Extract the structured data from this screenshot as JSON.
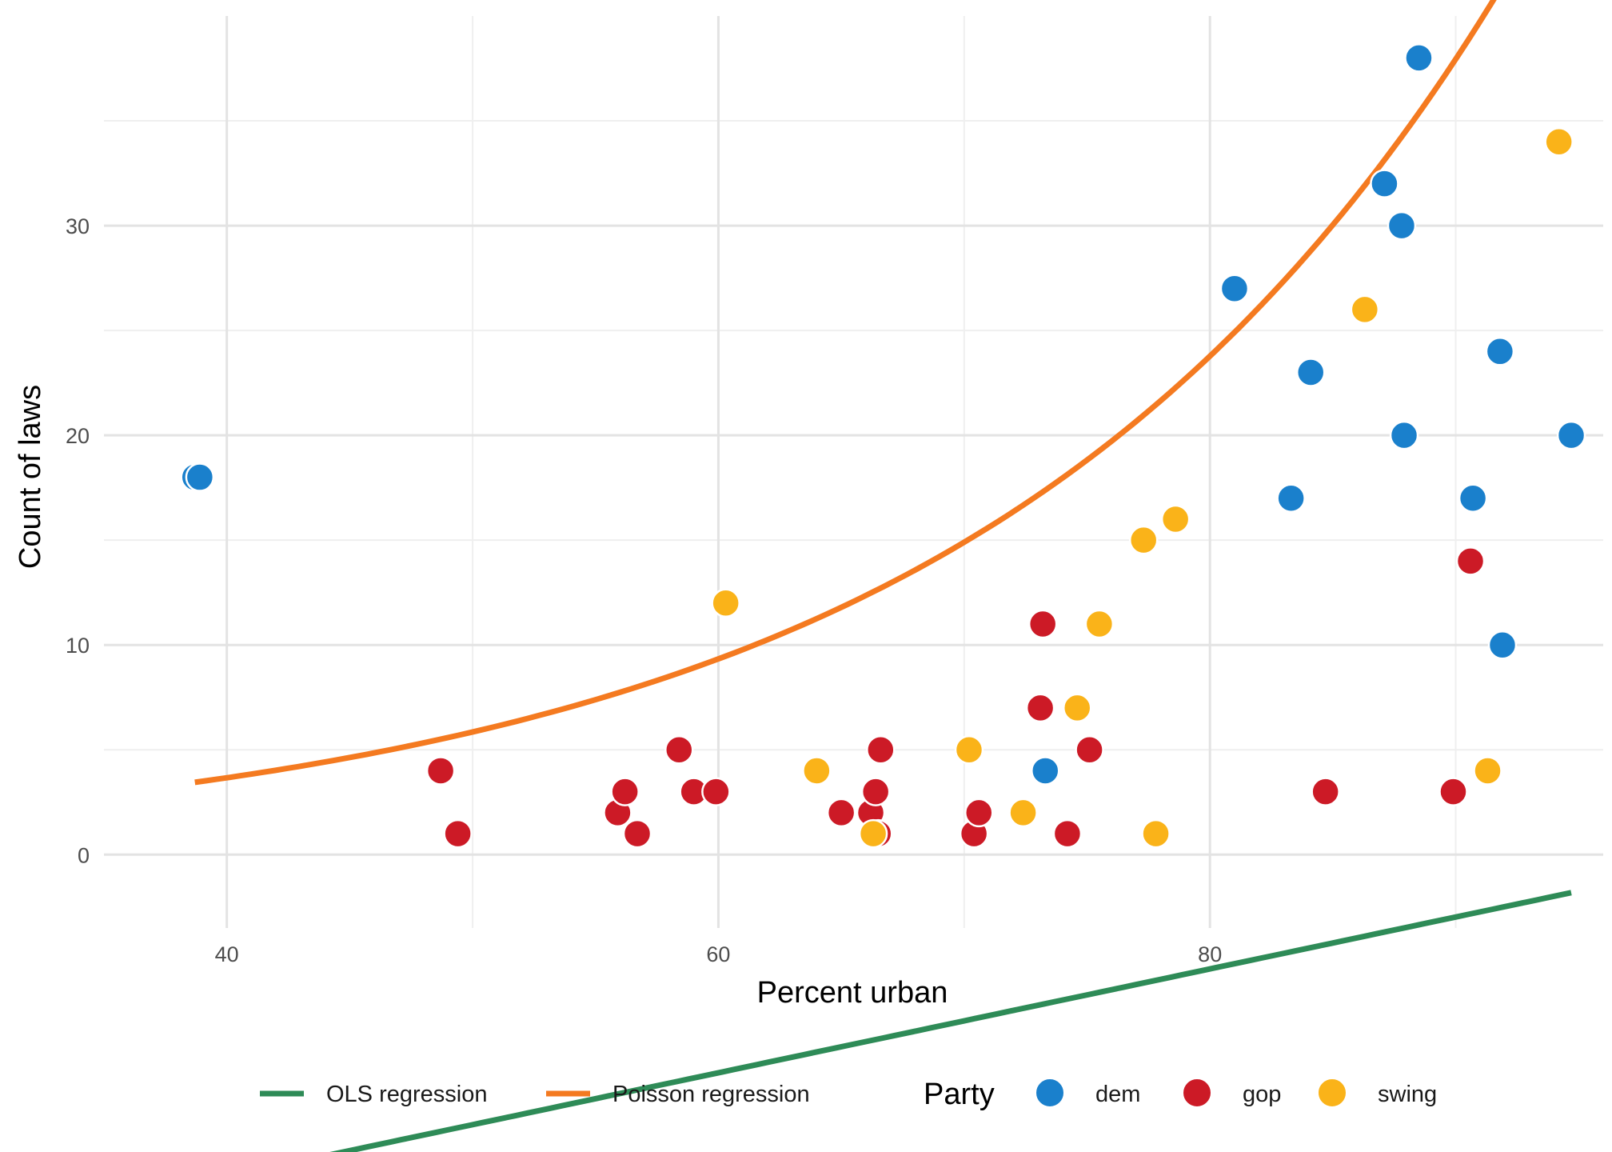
{
  "chart_data": {
    "type": "scatter",
    "xlabel": "Percent urban",
    "ylabel": "Count of laws",
    "xlim": [
      35,
      96
    ],
    "ylim": [
      -3.5,
      40
    ],
    "x_ticks": [
      40,
      60,
      80
    ],
    "y_ticks": [
      0,
      10,
      20,
      30
    ],
    "grid": true,
    "legend_position": "bottom",
    "legend_title": "Party",
    "party_colors": {
      "dem": "#1a80cc",
      "gop": "#cc1a26",
      "swing": "#fab319"
    },
    "points": [
      {
        "x": 38.7,
        "y": 18,
        "party": "dem"
      },
      {
        "x": 38.9,
        "y": 18,
        "party": "dem"
      },
      {
        "x": 73.3,
        "y": 4,
        "party": "dem"
      },
      {
        "x": 81.0,
        "y": 27,
        "party": "dem"
      },
      {
        "x": 83.3,
        "y": 17,
        "party": "dem"
      },
      {
        "x": 84.1,
        "y": 23,
        "party": "dem"
      },
      {
        "x": 87.1,
        "y": 32,
        "party": "dem"
      },
      {
        "x": 87.8,
        "y": 30,
        "party": "dem"
      },
      {
        "x": 87.9,
        "y": 20,
        "party": "dem"
      },
      {
        "x": 88.5,
        "y": 38,
        "party": "dem"
      },
      {
        "x": 90.7,
        "y": 17,
        "party": "dem"
      },
      {
        "x": 91.8,
        "y": 24,
        "party": "dem"
      },
      {
        "x": 91.9,
        "y": 10,
        "party": "dem"
      },
      {
        "x": 94.7,
        "y": 20,
        "party": "dem"
      },
      {
        "x": 48.7,
        "y": 4,
        "party": "gop"
      },
      {
        "x": 49.4,
        "y": 1,
        "party": "gop"
      },
      {
        "x": 55.9,
        "y": 2,
        "party": "gop"
      },
      {
        "x": 56.2,
        "y": 3,
        "party": "gop"
      },
      {
        "x": 56.7,
        "y": 1,
        "party": "gop"
      },
      {
        "x": 58.4,
        "y": 5,
        "party": "gop"
      },
      {
        "x": 59.0,
        "y": 3,
        "party": "gop"
      },
      {
        "x": 59.9,
        "y": 3,
        "party": "gop"
      },
      {
        "x": 65.0,
        "y": 2,
        "party": "gop"
      },
      {
        "x": 66.2,
        "y": 2,
        "party": "gop"
      },
      {
        "x": 66.4,
        "y": 3,
        "party": "gop"
      },
      {
        "x": 66.5,
        "y": 1,
        "party": "gop"
      },
      {
        "x": 66.6,
        "y": 5,
        "party": "gop"
      },
      {
        "x": 70.4,
        "y": 1,
        "party": "gop"
      },
      {
        "x": 70.6,
        "y": 2,
        "party": "gop"
      },
      {
        "x": 73.1,
        "y": 7,
        "party": "gop"
      },
      {
        "x": 73.2,
        "y": 11,
        "party": "gop"
      },
      {
        "x": 74.2,
        "y": 1,
        "party": "gop"
      },
      {
        "x": 75.1,
        "y": 5,
        "party": "gop"
      },
      {
        "x": 84.7,
        "y": 3,
        "party": "gop"
      },
      {
        "x": 89.9,
        "y": 3,
        "party": "gop"
      },
      {
        "x": 90.6,
        "y": 14,
        "party": "gop"
      },
      {
        "x": 60.3,
        "y": 12,
        "party": "swing"
      },
      {
        "x": 64.0,
        "y": 4,
        "party": "swing"
      },
      {
        "x": 66.3,
        "y": 1,
        "party": "swing"
      },
      {
        "x": 70.2,
        "y": 5,
        "party": "swing"
      },
      {
        "x": 72.4,
        "y": 2,
        "party": "swing"
      },
      {
        "x": 74.6,
        "y": 7,
        "party": "swing"
      },
      {
        "x": 75.5,
        "y": 11,
        "party": "swing"
      },
      {
        "x": 77.3,
        "y": 15,
        "party": "swing"
      },
      {
        "x": 77.8,
        "y": 1,
        "party": "swing"
      },
      {
        "x": 78.6,
        "y": 16,
        "party": "swing"
      },
      {
        "x": 86.3,
        "y": 26,
        "party": "swing"
      },
      {
        "x": 91.3,
        "y": 4,
        "party": "swing"
      },
      {
        "x": 94.2,
        "y": 34,
        "party": "swing"
      }
    ],
    "lines": [
      {
        "name": "OLS regression",
        "color": "#2e8b57",
        "x_range": [
          38.7,
          94.7
        ],
        "form": "linear",
        "intercept": -25.26,
        "slope": 0.2476
      },
      {
        "name": "Poisson regression",
        "color": "#f47a20",
        "x_range": [
          38.7,
          94.7
        ],
        "form": "exp",
        "intercept": -0.5705,
        "slope": 0.04674
      }
    ]
  },
  "legend": {
    "line_items": [
      "OLS regression",
      "Poisson regression"
    ],
    "party_title": "Party",
    "party_items": [
      "dem",
      "gop",
      "swing"
    ]
  }
}
